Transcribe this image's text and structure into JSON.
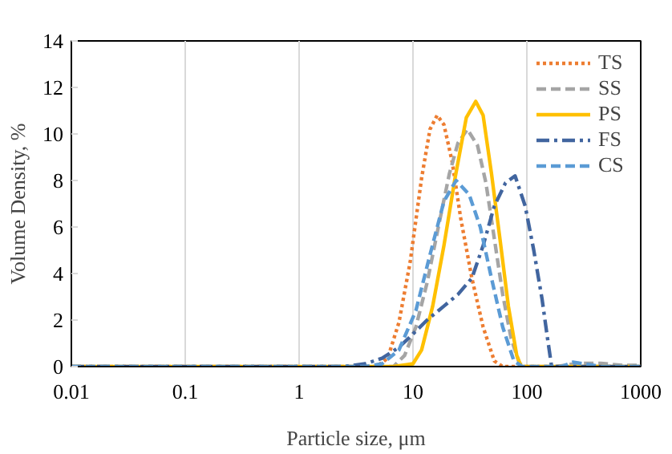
{
  "chart_data": {
    "type": "line",
    "xlabel": "Particle size, μm",
    "ylabel": "Volume Density, %",
    "log": "x",
    "grid": "x",
    "legend": "top right",
    "marker": "none",
    "xlim": [
      0.01,
      1000
    ],
    "xticks": [
      0.01,
      0.1,
      1,
      10,
      100,
      1000
    ],
    "ylim": [
      0,
      14
    ],
    "yticks": [
      0,
      2,
      4,
      6,
      8,
      10,
      12,
      14
    ],
    "series": [
      {
        "name": "TS",
        "color": "#ed7d31",
        "line_style": "dotted",
        "x": [
          0.01,
          4.79,
          6.0,
          7.53,
          9.45,
          11.9,
          14.1,
          16.3,
          18.7,
          22.1,
          26.2,
          32.9,
          41.3,
          51.8,
          61.4,
          1000
        ],
        "values": [
          0,
          0,
          0.36,
          1.9,
          4.5,
          8.1,
          10.2,
          10.8,
          10.4,
          8.8,
          6.4,
          3.8,
          1.7,
          0.24,
          0,
          0
        ]
      },
      {
        "name": "SS",
        "color": "#a5a5a5",
        "line_style": "dashed",
        "x": [
          0.01,
          6.73,
          8.44,
          10.6,
          13.3,
          16.7,
          20.9,
          24.8,
          30.0,
          36.9,
          43.7,
          51.8,
          61.4,
          72.8,
          86.3,
          102,
          180,
          284,
          447,
          703,
          988
        ],
        "values": [
          0,
          0,
          0.48,
          1.7,
          3.6,
          6.0,
          8.3,
          9.6,
          10.2,
          9.5,
          7.9,
          5.5,
          3.1,
          1.2,
          0.12,
          0,
          0,
          0.14,
          0.14,
          0.05,
          0.05
        ]
      },
      {
        "name": "PS",
        "color": "#ffc000",
        "line_style": "solid",
        "x": [
          0.01,
          6.73,
          10,
          11.9,
          14.9,
          18.7,
          23.4,
          29.4,
          35.6,
          41.3,
          48.9,
          58.0,
          68.8,
          81.5,
          89.3,
          115,
          1000
        ],
        "values": [
          0,
          0,
          0.12,
          0.71,
          2.6,
          5.2,
          8.1,
          10.7,
          11.4,
          10.8,
          8.3,
          5.5,
          2.6,
          0.48,
          0,
          0,
          0
        ]
      },
      {
        "name": "FS",
        "color": "#41659f",
        "line_style": "dashdot",
        "x": [
          0.01,
          2.42,
          3.81,
          5.36,
          7.53,
          10,
          13.3,
          18.7,
          24.8,
          32.9,
          41.3,
          51.8,
          65.0,
          78.8,
          96.7,
          115,
          136,
          152,
          165,
          202,
          1000
        ],
        "values": [
          0,
          0,
          0.12,
          0.36,
          0.83,
          1.4,
          2.0,
          2.6,
          3.1,
          3.8,
          5.2,
          6.9,
          7.9,
          8.2,
          6.9,
          5.0,
          2.9,
          1.2,
          0,
          0,
          0
        ]
      },
      {
        "name": "CS",
        "color": "#5b9bd5",
        "line_style": "dashed",
        "x": [
          0.01,
          3.81,
          5.36,
          7.53,
          10.6,
          14.1,
          18.7,
          23.9,
          31.1,
          39.0,
          48.9,
          61.4,
          77.0,
          91.4,
          202,
          253,
          447,
          1000
        ],
        "values": [
          0,
          0,
          0.12,
          0.71,
          2.4,
          4.8,
          7.1,
          8.0,
          7.4,
          6.0,
          3.8,
          1.7,
          0.24,
          0,
          0,
          0.19,
          0,
          0
        ]
      }
    ]
  }
}
